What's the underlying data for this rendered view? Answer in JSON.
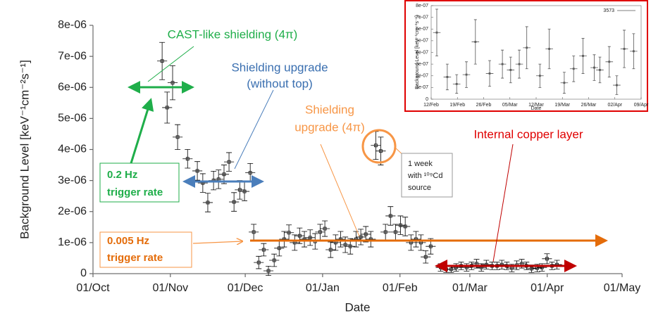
{
  "chart_data": [
    {
      "type": "scatter",
      "color": "#000000",
      "xerr": 2,
      "xlabel": "Date",
      "ylabel": "Background Level [keV⁻¹cm⁻²s⁻¹]",
      "xlim": [
        0,
        212
      ],
      "ylim": [
        0,
        8e-06
      ],
      "xticks": [
        {
          "value": 0,
          "label": "01/Oct"
        },
        {
          "value": 31,
          "label": "01/Nov"
        },
        {
          "value": 61,
          "label": "01/Dec"
        },
        {
          "value": 92,
          "label": "01/Jan"
        },
        {
          "value": 123,
          "label": "01/Feb"
        },
        {
          "value": 151,
          "label": "01/Mar"
        },
        {
          "value": 182,
          "label": "01/Apr"
        },
        {
          "value": 212,
          "label": "01/May"
        }
      ],
      "yticks": [
        0,
        {
          "value": 1e-06,
          "label": "1e-06"
        },
        {
          "value": 2e-06,
          "label": "2e-06"
        },
        {
          "value": 3e-06,
          "label": "3e-06"
        },
        {
          "value": 4e-06,
          "label": "4e-06"
        },
        {
          "value": 5e-06,
          "label": "5e-06"
        },
        {
          "value": 6e-06,
          "label": "6e-06"
        },
        {
          "value": 7e-06,
          "label": "7e-06"
        },
        {
          "value": 8e-06,
          "label": "8e-06"
        }
      ],
      "x": [
        27.7,
        29.7,
        31.9,
        33.9,
        37.9,
        41.8,
        44,
        46,
        48.3,
        50.3,
        52.5,
        54.5,
        56.5,
        58.8,
        60.7,
        63,
        64.4,
        66.4,
        68.4,
        70.3,
        72.6,
        74.6,
        76.6,
        78.5,
        80.8,
        82.8,
        84.7,
        87,
        89,
        91,
        92.9,
        95.2,
        97.2,
        99.2,
        101.1,
        103.1,
        105.4,
        107.3,
        109.3,
        111.3,
        113.3,
        115.3,
        117.2,
        119.2,
        121.2,
        123.2,
        125.1,
        127.4,
        129.4,
        131.4,
        133.3,
        135.3,
        139.3,
        141.5,
        143.5,
        145.5,
        147.5,
        149.7,
        151.7,
        153.7,
        155.6,
        157.6,
        159.9,
        161.9,
        163.8,
        165.8,
        167.8,
        169.8,
        171.8,
        173.7,
        175.7,
        178,
        179.9,
        181.9,
        183.9,
        185.9
      ],
      "values": [
        6.85e-06,
        5.35e-06,
        6.15e-06,
        4.4e-06,
        3.7e-06,
        3.31e-06,
        2.92e-06,
        2.29e-06,
        3e-06,
        3.04e-06,
        3.2e-06,
        3.6e-06,
        2.31e-06,
        2.7e-06,
        2.65e-06,
        3.25e-06,
        1.34e-06,
        3.6e-07,
        7.7e-07,
        9e-08,
        4.3e-07,
        8.2e-07,
        1.11e-06,
        1.32e-06,
        1e-06,
        1.22e-06,
        1.11e-06,
        1.16e-06,
        1.04e-06,
        1.34e-06,
        1.45e-06,
        7.7e-07,
        1e-06,
        1.11e-06,
        9.3e-07,
        8.8e-07,
        1.11e-06,
        1.18e-06,
        1.27e-06,
        1.11e-06,
        4.13e-06,
        3.95e-06,
        1.34e-06,
        1.86e-06,
        1.34e-06,
        1.56e-06,
        1.52e-06,
        1e-06,
        1.11e-06,
        1e-06,
        5.4e-07,
        8.8e-07,
        2e-07,
        1.4e-07,
        1.4e-07,
        2e-07,
        2.5e-07,
        2e-07,
        2.5e-07,
        3.2e-07,
        2e-07,
        2.9e-07,
        2.5e-07,
        2.5e-07,
        2.9e-07,
        2.5e-07,
        1.8e-07,
        2.7e-07,
        3.2e-07,
        2.5e-07,
        1.6e-07,
        1.8e-07,
        2e-07,
        4.8e-07,
        2.5e-07,
        2.9e-07
      ],
      "yerr": [
        6e-07,
        5e-07,
        5.5e-07,
        4e-07,
        3e-07,
        3e-07,
        3e-07,
        3e-07,
        3e-07,
        3e-07,
        3e-07,
        3e-07,
        3e-07,
        3e-07,
        3e-07,
        3e-07,
        2.5e-07,
        2e-07,
        2e-07,
        1.5e-07,
        2e-07,
        2.5e-07,
        2.5e-07,
        2.5e-07,
        2.5e-07,
        2.5e-07,
        2.5e-07,
        2.5e-07,
        2.5e-07,
        2.5e-07,
        2.5e-07,
        2.5e-07,
        2.5e-07,
        2.5e-07,
        2.5e-07,
        2.5e-07,
        2.5e-07,
        2.5e-07,
        2.5e-07,
        2.5e-07,
        4.5e-07,
        4.5e-07,
        2.5e-07,
        3e-07,
        2.5e-07,
        3e-07,
        3e-07,
        2.5e-07,
        2.5e-07,
        2.5e-07,
        2e-07,
        2.5e-07,
        1.2e-07,
        1e-07,
        1e-07,
        1.2e-07,
        1.2e-07,
        1.2e-07,
        1.2e-07,
        1.4e-07,
        1.2e-07,
        1.4e-07,
        1.2e-07,
        1.2e-07,
        1.4e-07,
        1.2e-07,
        1.2e-07,
        1.4e-07,
        1.4e-07,
        1.2e-07,
        1.2e-07,
        1.2e-07,
        1.2e-07,
        1.6e-07,
        1.2e-07,
        1.4e-07
      ],
      "annotations": [
        [
          "CAST-like shielding (4π)"
        ],
        [
          "Shielding upgrade",
          "(without top)"
        ],
        [
          "Shielding",
          "upgrade  (4π)"
        ],
        [
          "Internal copper layer"
        ],
        [
          "0.2 Hz",
          "trigger rate"
        ],
        [
          "0.005 Hz",
          "trigger rate"
        ],
        [
          "1 week",
          "with ¹⁰⁹Cd",
          "source"
        ]
      ]
    },
    {
      "type": "scatter",
      "color": "#555555",
      "xerr": 1,
      "legend": "3573",
      "xlabel": "Date",
      "ylabel": "Background Level [keV⁻¹cm⁻²s⁻¹]",
      "xlim": [
        0,
        56
      ],
      "ylim": [
        0,
        8e-07
      ],
      "xticks": [
        {
          "value": 0,
          "label": "12/Feb"
        },
        {
          "value": 7,
          "label": "19/Feb"
        },
        {
          "value": 14,
          "label": "26/Feb"
        },
        {
          "value": 21,
          "label": "05/Mar"
        },
        {
          "value": 28,
          "label": "12/Mar"
        },
        {
          "value": 35,
          "label": "19/Mar"
        },
        {
          "value": 42,
          "label": "26/Mar"
        },
        {
          "value": 49,
          "label": "02/Apr"
        },
        {
          "value": 56,
          "label": "09/Apr"
        }
      ],
      "yticks": [
        0,
        {
          "value": 1e-07,
          "label": "1e-07"
        },
        {
          "value": 2e-07,
          "label": "2e-07"
        },
        {
          "value": 3e-07,
          "label": "3e-07"
        },
        {
          "value": 4e-07,
          "label": "4e-07"
        },
        {
          "value": 5e-07,
          "label": "5e-07"
        },
        {
          "value": 6e-07,
          "label": "6e-07"
        },
        {
          "value": 7e-07,
          "label": "7e-07"
        },
        {
          "value": 8e-07,
          "label": "8e-07"
        }
      ],
      "x": [
        1.5,
        4.3,
        6.8,
        9.4,
        11.8,
        15.6,
        19,
        21.2,
        23.5,
        25.5,
        29,
        31.5,
        35.5,
        38,
        40.5,
        43.5,
        45,
        47.5,
        49.5,
        51.5,
        54
      ],
      "values": [
        5.7e-07,
        1.9e-07,
        1.3e-07,
        2.1e-07,
        4.9e-07,
        2.2e-07,
        3e-07,
        2.5e-07,
        3e-07,
        4.4e-07,
        2e-07,
        4.3e-07,
        1.4e-07,
        2.6e-07,
        3.7e-07,
        2.7e-07,
        2.5e-07,
        3.2e-07,
        1.2e-07,
        4.3e-07,
        4.1e-07
      ],
      "yerr": [
        2e-07,
        1.1e-07,
        8e-08,
        1.1e-07,
        1.9e-07,
        1.1e-07,
        1.2e-07,
        1.1e-07,
        1.2e-07,
        1.8e-07,
        1e-07,
        1.7e-07,
        9e-08,
        1.1e-07,
        1.5e-07,
        1.1e-07,
        1.1e-07,
        1.3e-07,
        8e-08,
        1.6e-07,
        1.5e-07
      ]
    }
  ]
}
